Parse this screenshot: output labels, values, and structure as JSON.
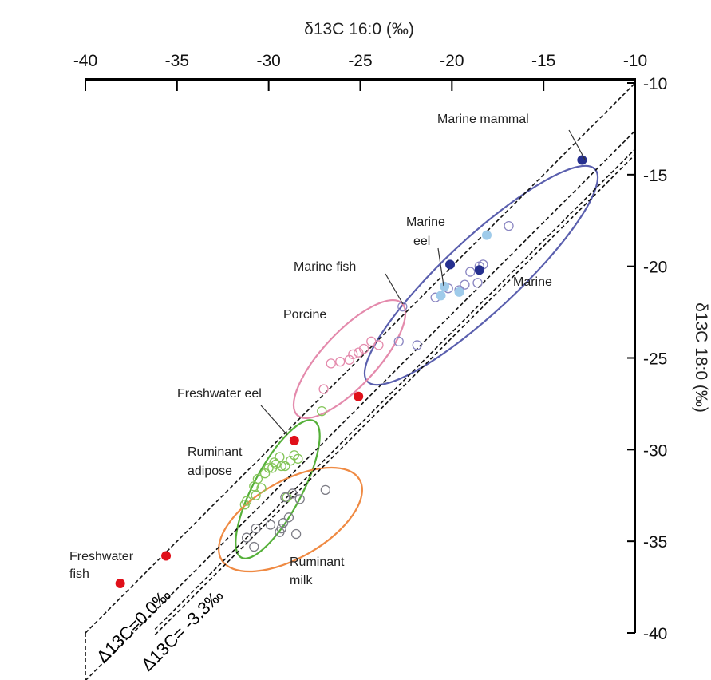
{
  "chart_data": {
    "type": "scatter",
    "title": "",
    "xlabel": "δ13C 16:0 (‰)",
    "ylabel": "δ13C 18:0 (‰)",
    "xlim": [
      -40,
      -10
    ],
    "ylim": [
      -40,
      -10
    ],
    "x_axis_position": "top",
    "y_axis_position": "right",
    "y_inverted": true,
    "x_ticks": [
      -40,
      -35,
      -30,
      -25,
      -20,
      -15,
      -10
    ],
    "y_ticks": [
      -10,
      -15,
      -20,
      -25,
      -30,
      -35,
      -40
    ],
    "grid": false,
    "reference_lines": [
      {
        "label": "Δ13C=0.0‰",
        "slope": 1,
        "intercept": 0
      },
      {
        "label": "Δ13C= -3.3‰",
        "slope": 1,
        "intercept": -3.3
      }
    ],
    "series": [
      {
        "name": "Marine",
        "marker": "open-circle",
        "color": "#8a86c2",
        "x": [
          -18.3,
          -16.9,
          -18.5,
          -19.0,
          -18.6,
          -19.3,
          -19.6,
          -20.2,
          -20.9,
          -22.7,
          -21.9,
          -22.9
        ],
        "y": [
          -19.9,
          -17.8,
          -20.0,
          -20.3,
          -20.9,
          -21.0,
          -21.3,
          -21.2,
          -21.7,
          -22.2,
          -24.3,
          -24.1
        ]
      },
      {
        "name": "Marine eel",
        "marker": "filled-circle",
        "color": "#9fcbea",
        "x": [
          -18.1,
          -20.4,
          -20.6,
          -19.6
        ],
        "y": [
          -18.3,
          -21.1,
          -21.6,
          -21.4
        ]
      },
      {
        "name": "Marine mammal",
        "marker": "filled-circle",
        "color": "#26308f",
        "x": [
          -12.9,
          -20.1,
          -18.5
        ],
        "y": [
          -14.2,
          -19.9,
          -20.2
        ]
      },
      {
        "name": "Porcine",
        "marker": "open-circle",
        "color": "#e48aac",
        "x": [
          -24.0,
          -24.4,
          -24.8,
          -25.1,
          -25.4,
          -25.6,
          -26.1,
          -26.6,
          -27.0
        ],
        "y": [
          -24.3,
          -24.1,
          -24.5,
          -24.7,
          -24.8,
          -25.1,
          -25.2,
          -25.3,
          -26.7
        ]
      },
      {
        "name": "Ruminant adipose",
        "marker": "open-circle",
        "color": "#84c559",
        "x": [
          -27.1,
          -28.4,
          -28.8,
          -29.1,
          -28.6,
          -29.4,
          -29.6,
          -29.8,
          -30.2,
          -30.6,
          -30.4,
          -29.0,
          -30.7,
          -31.2,
          -31.3,
          -30.8,
          -29.3,
          -29.7,
          -30.0
        ],
        "y": [
          -27.9,
          -30.5,
          -30.6,
          -30.9,
          -30.3,
          -30.4,
          -30.8,
          -31.0,
          -31.3,
          -31.6,
          -32.1,
          -32.6,
          -32.5,
          -32.8,
          -33.0,
          -32.0,
          -30.9,
          -30.7,
          -31.0
        ],
        "labels": []
      },
      {
        "name": "Ruminant milk",
        "marker": "open-circle",
        "color": "#7d7d86",
        "x": [
          -26.9,
          -28.7,
          -28.3,
          -29.1,
          -28.9,
          -29.9,
          -29.2,
          -29.4,
          -28.5,
          -29.3,
          -30.7,
          -31.2,
          -30.8
        ],
        "y": [
          -32.2,
          -32.4,
          -32.7,
          -32.6,
          -33.7,
          -34.1,
          -34.0,
          -34.5,
          -34.6,
          -34.3,
          -34.3,
          -34.8,
          -35.3
        ]
      },
      {
        "name": "Freshwater",
        "marker": "filled-circle",
        "color": "#e0101a",
        "x": [
          -25.1,
          -28.6,
          -35.6,
          -38.1
        ],
        "y": [
          -27.1,
          -29.5,
          -35.8,
          -37.3
        ]
      }
    ],
    "groups": [
      {
        "label": "Marine",
        "color": "#5a5fae"
      },
      {
        "label": "Porcine",
        "color": "#e48aac"
      },
      {
        "label": "Ruminant adipose",
        "color": "#55b039"
      },
      {
        "label": "Ruminant milk",
        "color": "#ef8a43"
      }
    ],
    "annotations": [
      "Marine mammal",
      "Marine",
      "eel",
      "Marine fish",
      "Marine",
      "Porcine",
      "Freshwater eel",
      "Ruminant",
      "adipose",
      "Ruminant",
      "milk",
      "Freshwater",
      "fish"
    ],
    "legend": "none"
  }
}
